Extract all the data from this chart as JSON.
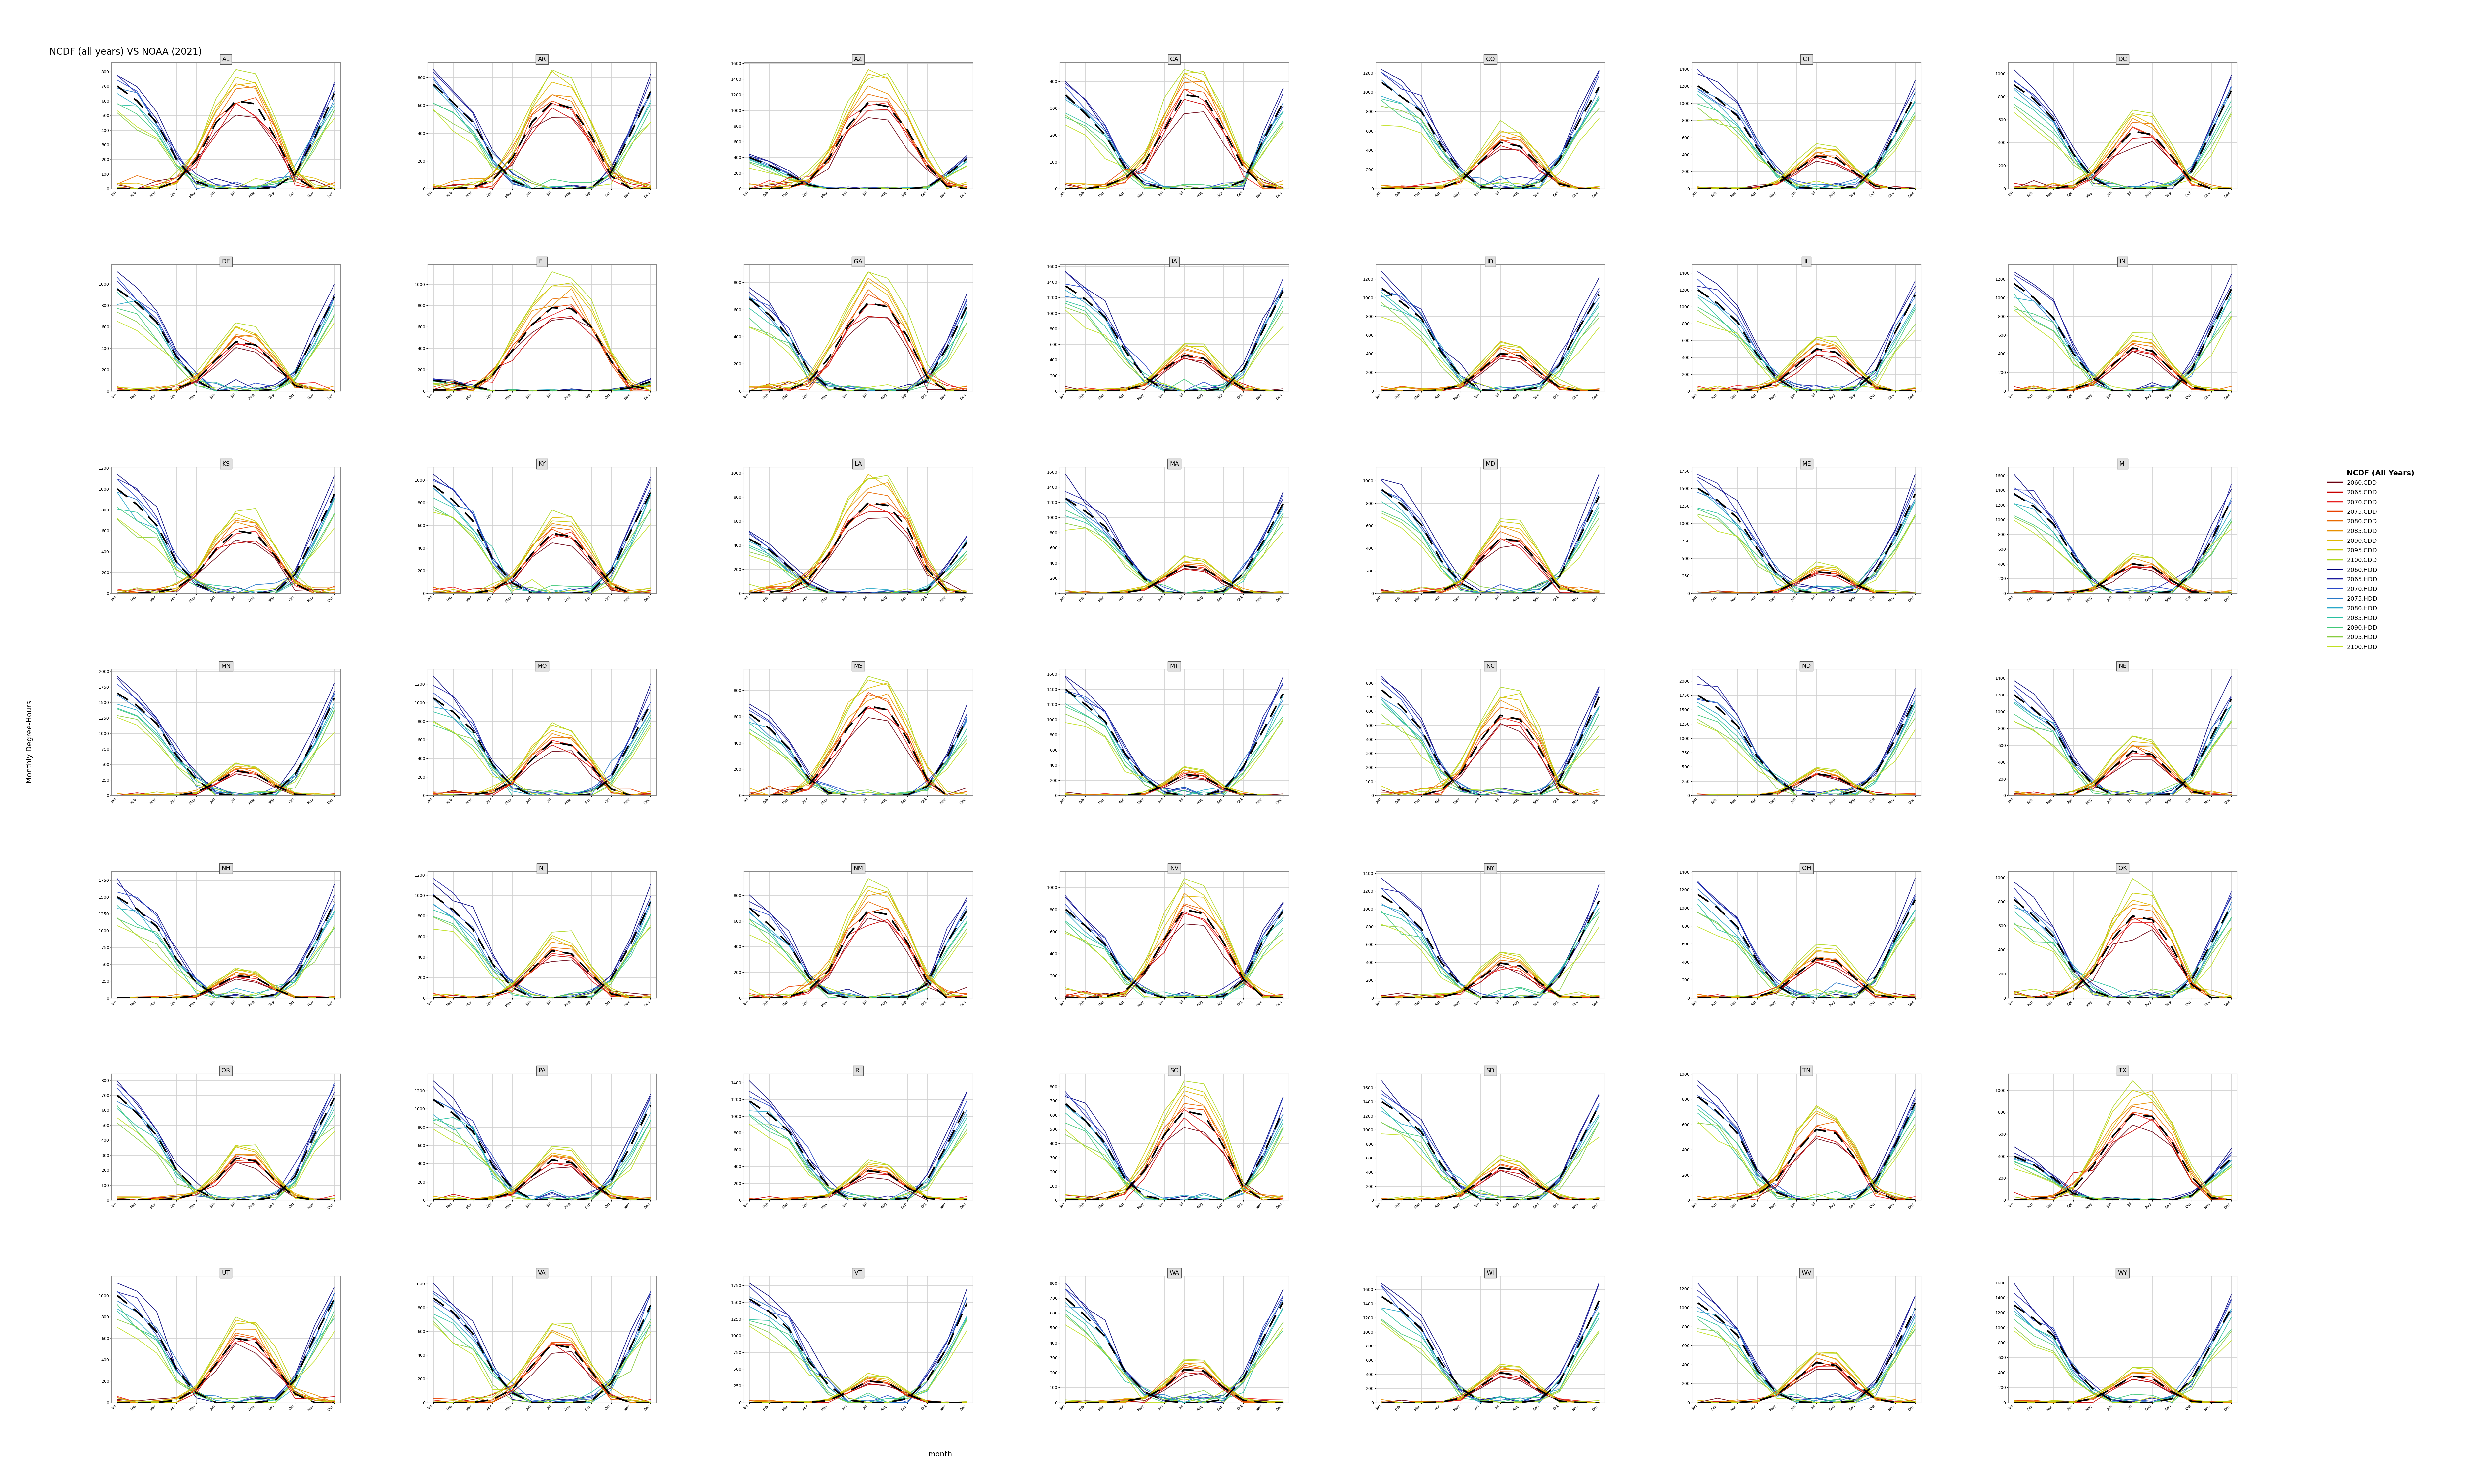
{
  "title": "NCDF (all years) VS NOAA (2021)",
  "ylabel": "Monthly Degree-Hours",
  "xlabel": "month",
  "states": [
    "AL",
    "AR",
    "AZ",
    "CA",
    "CO",
    "CT",
    "DC",
    "DE",
    "FL",
    "GA",
    "IA",
    "ID",
    "IL",
    "IN",
    "KS",
    "KY",
    "LA",
    "MA",
    "MD",
    "ME",
    "MI",
    "MN",
    "MO",
    "MS",
    "MT",
    "NC",
    "ND",
    "NE",
    "NH",
    "NJ",
    "NM",
    "NV",
    "NY",
    "OH",
    "OK",
    "OR",
    "PA",
    "RI",
    "SC",
    "SD",
    "TN",
    "TX",
    "UT",
    "VA",
    "VT",
    "WA",
    "WI",
    "WV",
    "WY"
  ],
  "months": [
    "Jan",
    "Feb",
    "Mar",
    "Apr",
    "May",
    "Jun",
    "Jul",
    "Aug",
    "Sep",
    "Oct",
    "Nov",
    "Dec"
  ],
  "cdd_years": [
    "2060",
    "2065",
    "2070",
    "2075",
    "2080",
    "2085",
    "2090",
    "2095",
    "2100"
  ],
  "hdd_years": [
    "2060",
    "2065",
    "2070",
    "2075",
    "2080",
    "2085",
    "2090",
    "2095",
    "2100"
  ],
  "cdd_colors": [
    "#6b0010",
    "#c80000",
    "#e82020",
    "#e84000",
    "#e86a00",
    "#e89000",
    "#e0b800",
    "#c8cc00",
    "#b0d820"
  ],
  "hdd_colors": [
    "#00007a",
    "#1a1a9e",
    "#2848c8",
    "#2878c8",
    "#28a8c8",
    "#28c0a0",
    "#40c878",
    "#88cc40",
    "#c0e020"
  ],
  "noaa_cdd": {
    "AL": [
      0,
      0,
      0,
      50,
      200,
      450,
      600,
      580,
      350,
      80,
      0,
      0
    ],
    "AR": [
      0,
      0,
      10,
      60,
      220,
      480,
      620,
      580,
      380,
      90,
      0,
      0
    ],
    "AZ": [
      0,
      0,
      20,
      100,
      380,
      800,
      1100,
      1050,
      750,
      300,
      30,
      0
    ],
    "CA": [
      0,
      0,
      10,
      40,
      100,
      220,
      350,
      340,
      220,
      80,
      10,
      0
    ],
    "CO": [
      0,
      0,
      0,
      10,
      80,
      280,
      480,
      440,
      240,
      50,
      0,
      0
    ],
    "CT": [
      0,
      0,
      0,
      10,
      60,
      220,
      380,
      360,
      180,
      30,
      0,
      0
    ],
    "DC": [
      0,
      0,
      0,
      30,
      120,
      320,
      500,
      470,
      280,
      60,
      0,
      0
    ],
    "DE": [
      0,
      0,
      0,
      20,
      100,
      290,
      460,
      430,
      250,
      50,
      0,
      0
    ],
    "FL": [
      10,
      10,
      40,
      150,
      380,
      620,
      780,
      770,
      600,
      280,
      50,
      10
    ],
    "GA": [
      0,
      0,
      10,
      70,
      240,
      480,
      650,
      620,
      400,
      100,
      0,
      0
    ],
    "IA": [
      0,
      0,
      0,
      10,
      80,
      280,
      460,
      420,
      200,
      30,
      0,
      0
    ],
    "ID": [
      0,
      0,
      0,
      10,
      60,
      220,
      400,
      380,
      200,
      40,
      0,
      0
    ],
    "IL": [
      0,
      0,
      0,
      20,
      100,
      300,
      500,
      460,
      240,
      40,
      0,
      0
    ],
    "IN": [
      0,
      0,
      0,
      20,
      90,
      280,
      460,
      430,
      220,
      40,
      0,
      0
    ],
    "KS": [
      0,
      0,
      10,
      50,
      180,
      420,
      600,
      570,
      360,
      90,
      0,
      0
    ],
    "KY": [
      0,
      0,
      0,
      30,
      130,
      350,
      530,
      500,
      300,
      70,
      0,
      0
    ],
    "LA": [
      0,
      10,
      30,
      120,
      320,
      580,
      750,
      730,
      540,
      200,
      20,
      0
    ],
    "MA": [
      0,
      0,
      0,
      10,
      50,
      200,
      360,
      330,
      160,
      20,
      0,
      0
    ],
    "MD": [
      0,
      0,
      0,
      20,
      100,
      300,
      490,
      460,
      260,
      50,
      0,
      0
    ],
    "ME": [
      0,
      0,
      0,
      0,
      30,
      160,
      310,
      280,
      120,
      10,
      0,
      0
    ],
    "MI": [
      0,
      0,
      0,
      10,
      60,
      230,
      400,
      360,
      170,
      20,
      0,
      0
    ],
    "MN": [
      0,
      0,
      0,
      0,
      50,
      210,
      400,
      350,
      160,
      20,
      0,
      0
    ],
    "MO": [
      0,
      0,
      10,
      40,
      160,
      390,
      580,
      540,
      320,
      70,
      0,
      0
    ],
    "MS": [
      0,
      0,
      10,
      80,
      260,
      520,
      680,
      650,
      430,
      120,
      0,
      0
    ],
    "MT": [
      0,
      0,
      0,
      0,
      30,
      130,
      280,
      250,
      100,
      10,
      0,
      0
    ],
    "NC": [
      0,
      0,
      0,
      40,
      160,
      390,
      570,
      540,
      330,
      70,
      0,
      0
    ],
    "ND": [
      0,
      0,
      0,
      0,
      40,
      200,
      380,
      330,
      140,
      10,
      0,
      0
    ],
    "NE": [
      0,
      0,
      0,
      20,
      110,
      330,
      530,
      490,
      260,
      50,
      0,
      0
    ],
    "NH": [
      0,
      0,
      0,
      0,
      30,
      170,
      330,
      300,
      130,
      10,
      0,
      0
    ],
    "NJ": [
      0,
      0,
      0,
      20,
      90,
      280,
      460,
      430,
      230,
      40,
      0,
      0
    ],
    "NM": [
      0,
      0,
      10,
      60,
      210,
      490,
      680,
      650,
      430,
      130,
      0,
      0
    ],
    "NV": [
      0,
      0,
      10,
      60,
      230,
      530,
      800,
      760,
      500,
      170,
      10,
      0
    ],
    "NY": [
      0,
      0,
      0,
      10,
      60,
      220,
      390,
      360,
      170,
      20,
      0,
      0
    ],
    "OH": [
      0,
      0,
      0,
      15,
      80,
      260,
      440,
      410,
      210,
      35,
      0,
      0
    ],
    "OK": [
      0,
      0,
      10,
      60,
      220,
      490,
      680,
      650,
      420,
      110,
      0,
      0
    ],
    "OR": [
      0,
      0,
      0,
      10,
      40,
      130,
      280,
      260,
      130,
      20,
      0,
      0
    ],
    "PA": [
      0,
      0,
      0,
      15,
      80,
      260,
      440,
      410,
      200,
      35,
      0,
      0
    ],
    "RI": [
      0,
      0,
      0,
      10,
      50,
      190,
      350,
      320,
      150,
      20,
      0,
      0
    ],
    "SC": [
      0,
      0,
      10,
      60,
      210,
      460,
      630,
      600,
      380,
      90,
      0,
      0
    ],
    "SD": [
      0,
      0,
      0,
      10,
      80,
      280,
      460,
      420,
      200,
      30,
      0,
      0
    ],
    "TN": [
      0,
      0,
      0,
      40,
      160,
      390,
      560,
      530,
      320,
      70,
      0,
      0
    ],
    "TX": [
      0,
      10,
      30,
      110,
      310,
      580,
      780,
      760,
      530,
      210,
      20,
      0
    ],
    "UT": [
      0,
      0,
      0,
      20,
      120,
      360,
      600,
      570,
      340,
      80,
      0,
      0
    ],
    "VA": [
      0,
      0,
      0,
      25,
      110,
      310,
      490,
      460,
      260,
      55,
      0,
      0
    ],
    "VT": [
      0,
      0,
      0,
      0,
      30,
      160,
      320,
      290,
      120,
      10,
      0,
      0
    ],
    "WA": [
      0,
      0,
      0,
      10,
      30,
      100,
      220,
      210,
      100,
      15,
      0,
      0
    ],
    "WI": [
      0,
      0,
      0,
      5,
      60,
      230,
      420,
      380,
      170,
      20,
      0,
      0
    ],
    "WV": [
      0,
      0,
      0,
      15,
      80,
      250,
      420,
      390,
      200,
      35,
      0,
      0
    ],
    "WY": [
      0,
      0,
      0,
      5,
      50,
      190,
      350,
      320,
      140,
      15,
      0,
      0
    ]
  },
  "noaa_hdd": {
    "AL": [
      700,
      600,
      450,
      200,
      50,
      0,
      0,
      0,
      10,
      100,
      350,
      650
    ],
    "AR": [
      750,
      620,
      480,
      220,
      60,
      0,
      0,
      0,
      10,
      120,
      400,
      700
    ],
    "AZ": [
      400,
      300,
      180,
      50,
      0,
      0,
      0,
      0,
      0,
      20,
      180,
      380
    ],
    "CA": [
      350,
      280,
      200,
      80,
      20,
      0,
      0,
      0,
      0,
      30,
      180,
      320
    ],
    "CO": [
      1100,
      950,
      800,
      450,
      180,
      20,
      0,
      0,
      50,
      300,
      700,
      1050
    ],
    "CT": [
      1200,
      1050,
      850,
      480,
      180,
      20,
      0,
      0,
      30,
      250,
      650,
      1100
    ],
    "DC": [
      900,
      780,
      600,
      300,
      90,
      0,
      0,
      0,
      10,
      150,
      500,
      850
    ],
    "DE": [
      950,
      820,
      640,
      320,
      100,
      0,
      0,
      0,
      15,
      160,
      520,
      880
    ],
    "FL": [
      100,
      80,
      40,
      5,
      0,
      0,
      0,
      0,
      0,
      5,
      30,
      90
    ],
    "GA": [
      680,
      560,
      400,
      150,
      30,
      0,
      0,
      0,
      5,
      80,
      320,
      620
    ],
    "IA": [
      1350,
      1180,
      950,
      520,
      180,
      10,
      0,
      0,
      30,
      280,
      780,
      1280
    ],
    "ID": [
      1100,
      950,
      780,
      420,
      160,
      10,
      0,
      0,
      40,
      280,
      680,
      1030
    ],
    "IL": [
      1200,
      1040,
      820,
      430,
      150,
      10,
      0,
      0,
      20,
      240,
      700,
      1140
    ],
    "IN": [
      1150,
      1000,
      780,
      400,
      140,
      5,
      0,
      0,
      20,
      230,
      660,
      1090
    ],
    "KS": [
      1000,
      850,
      650,
      300,
      90,
      0,
      0,
      0,
      10,
      180,
      560,
      950
    ],
    "KY": [
      950,
      820,
      640,
      300,
      90,
      0,
      0,
      0,
      15,
      190,
      550,
      890
    ],
    "LA": [
      450,
      360,
      220,
      70,
      5,
      0,
      0,
      0,
      0,
      30,
      200,
      420
    ],
    "MA": [
      1250,
      1080,
      880,
      500,
      190,
      20,
      0,
      0,
      30,
      260,
      680,
      1180
    ],
    "MD": [
      920,
      790,
      610,
      290,
      90,
      0,
      0,
      0,
      10,
      150,
      490,
      860
    ],
    "ME": [
      1500,
      1330,
      1080,
      640,
      280,
      40,
      0,
      0,
      60,
      330,
      800,
      1420
    ],
    "MI": [
      1350,
      1180,
      940,
      500,
      170,
      10,
      0,
      0,
      25,
      260,
      720,
      1270
    ],
    "MN": [
      1650,
      1450,
      1160,
      650,
      260,
      30,
      0,
      0,
      50,
      340,
      900,
      1570
    ],
    "MO": [
      1050,
      900,
      700,
      330,
      100,
      0,
      0,
      0,
      15,
      200,
      580,
      990
    ],
    "MS": [
      620,
      510,
      360,
      130,
      20,
      0,
      0,
      0,
      5,
      70,
      290,
      580
    ],
    "MT": [
      1400,
      1200,
      980,
      550,
      230,
      40,
      0,
      0,
      80,
      380,
      860,
      1340
    ],
    "NC": [
      750,
      630,
      470,
      200,
      50,
      0,
      0,
      0,
      10,
      110,
      380,
      700
    ],
    "ND": [
      1750,
      1530,
      1220,
      680,
      290,
      50,
      0,
      0,
      80,
      380,
      980,
      1680
    ],
    "NE": [
      1200,
      1030,
      810,
      400,
      130,
      5,
      0,
      0,
      20,
      240,
      700,
      1150
    ],
    "NH": [
      1500,
      1320,
      1060,
      580,
      230,
      30,
      0,
      0,
      50,
      310,
      790,
      1430
    ],
    "NJ": [
      1000,
      860,
      670,
      330,
      100,
      5,
      0,
      0,
      15,
      190,
      530,
      940
    ],
    "NM": [
      700,
      570,
      420,
      160,
      30,
      0,
      0,
      0,
      10,
      110,
      430,
      680
    ],
    "NV": [
      800,
      650,
      480,
      200,
      50,
      0,
      0,
      0,
      15,
      160,
      520,
      780
    ],
    "NY": [
      1150,
      1000,
      780,
      400,
      140,
      10,
      0,
      0,
      20,
      240,
      650,
      1090
    ],
    "OH": [
      1150,
      1000,
      790,
      410,
      140,
      5,
      0,
      0,
      20,
      230,
      660,
      1090
    ],
    "OK": [
      820,
      680,
      510,
      230,
      60,
      0,
      0,
      0,
      10,
      150,
      460,
      770
    ],
    "OR": [
      700,
      580,
      430,
      200,
      70,
      5,
      0,
      0,
      20,
      160,
      440,
      680
    ],
    "PA": [
      1100,
      950,
      750,
      380,
      130,
      5,
      0,
      0,
      20,
      210,
      600,
      1040
    ],
    "RI": [
      1180,
      1020,
      820,
      450,
      170,
      15,
      0,
      0,
      25,
      240,
      660,
      1120
    ],
    "SC": [
      680,
      560,
      400,
      150,
      30,
      0,
      0,
      0,
      5,
      80,
      320,
      630
    ],
    "SD": [
      1400,
      1220,
      970,
      510,
      180,
      15,
      0,
      0,
      35,
      300,
      800,
      1350
    ],
    "TN": [
      820,
      700,
      530,
      230,
      60,
      0,
      0,
      0,
      10,
      150,
      440,
      770
    ],
    "TX": [
      400,
      320,
      200,
      60,
      5,
      0,
      0,
      0,
      0,
      40,
      210,
      380
    ],
    "UT": [
      1000,
      850,
      660,
      310,
      90,
      0,
      0,
      0,
      20,
      210,
      620,
      970
    ],
    "VA": [
      880,
      760,
      580,
      270,
      80,
      0,
      0,
      0,
      10,
      160,
      470,
      820
    ],
    "VT": [
      1550,
      1360,
      1100,
      620,
      260,
      35,
      0,
      0,
      60,
      330,
      820,
      1480
    ],
    "WA": [
      700,
      580,
      440,
      210,
      70,
      10,
      0,
      0,
      20,
      160,
      430,
      670
    ],
    "WI": [
      1500,
      1310,
      1040,
      560,
      200,
      15,
      0,
      0,
      35,
      290,
      820,
      1440
    ],
    "WV": [
      1050,
      900,
      710,
      340,
      100,
      5,
      0,
      0,
      15,
      200,
      570,
      990
    ],
    "WY": [
      1300,
      1120,
      890,
      470,
      180,
      20,
      0,
      0,
      50,
      310,
      780,
      1260
    ]
  },
  "n_cols": 7,
  "n_rows": 7
}
